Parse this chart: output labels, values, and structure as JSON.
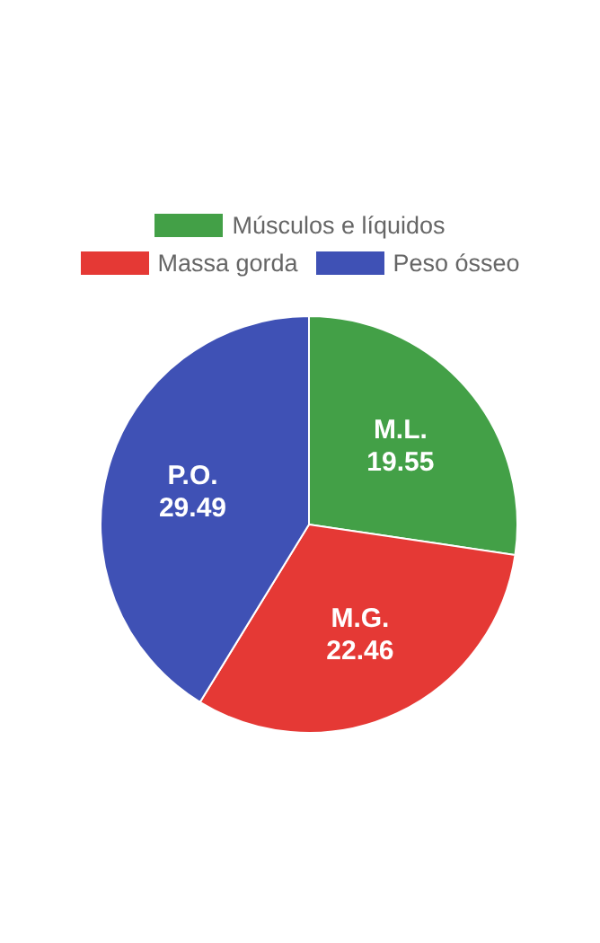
{
  "chart_data": {
    "type": "pie",
    "categories": [
      "Músculos e líquidos",
      "Massa gorda",
      "Peso ósseo"
    ],
    "values": [
      19.55,
      22.46,
      29.49
    ],
    "colors": [
      "#43a047",
      "#e53935",
      "#3f51b5"
    ],
    "value_labels": [
      "M.L.\n19.55",
      "M.G.\n22.46",
      "P.O.\n29.49"
    ],
    "legend": "top"
  }
}
